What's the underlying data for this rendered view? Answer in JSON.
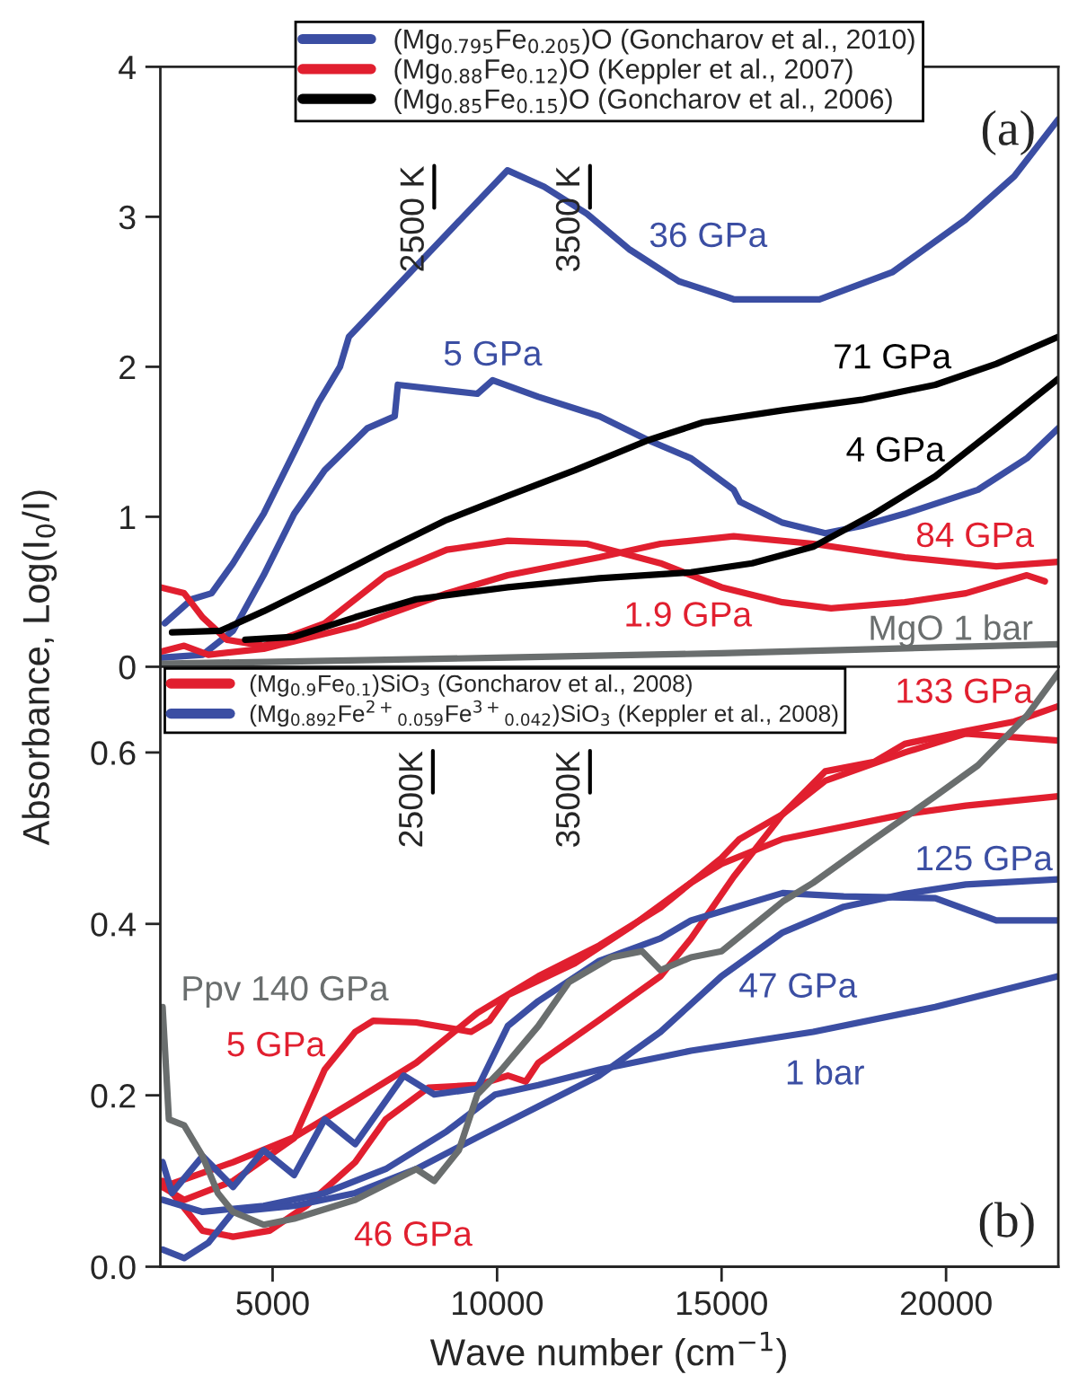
{
  "chart_data": [
    {
      "type": "line",
      "ylabel": "Absorbance, Log(I$_{0}$/I)",
      "xlim": [
        2500,
        22500
      ],
      "ylim": [
        0,
        4
      ],
      "xticks": [
        5000,
        10000,
        15000,
        20000
      ],
      "yticks": [
        0,
        1,
        2,
        3,
        4
      ],
      "tick_labels": "y",
      "legend": "top",
      "series": [
        {
          "name": "(Mg$_{0.795}$Fe$_{0.205}$)O (Goncharov et al., 2010)",
          "color": "#3b4ea3",
          "x": [
            2600,
            3200,
            3640,
            4120,
            4800,
            5480,
            6020,
            6500,
            6700,
            10230,
            11050,
            12000,
            12960,
            14050,
            15270,
            17180,
            18800,
            20430,
            21520,
            22500
          ],
          "values": [
            0.29,
            0.45,
            0.49,
            0.69,
            1.02,
            1.43,
            1.76,
            2.0,
            2.2,
            3.31,
            3.2,
            3.02,
            2.78,
            2.57,
            2.45,
            2.45,
            2.63,
            2.98,
            3.27,
            3.65
          ]
        },
        {
          "color": "#3b4ea3",
          "x": [
            2500,
            3440,
            4120,
            4800,
            5480,
            6160,
            7110,
            7720,
            7790,
            9560,
            9900,
            10920,
            12280,
            13370,
            14320,
            15270,
            15410,
            16360,
            17310,
            18130,
            19080,
            20710,
            21800,
            22500
          ],
          "values": [
            0.06,
            0.08,
            0.24,
            0.61,
            1.02,
            1.31,
            1.59,
            1.67,
            1.88,
            1.82,
            1.91,
            1.8,
            1.67,
            1.51,
            1.39,
            1.18,
            1.1,
            0.96,
            0.89,
            0.94,
            1.02,
            1.18,
            1.39,
            1.59
          ]
        },
        {
          "name": "(Mg$_{0.88}$Fe$_{0.12}$)O (Keppler et al., 2007)",
          "color": "#e11f2f",
          "x": [
            2500,
            3030,
            3440,
            3980,
            4800,
            6160,
            7520,
            8880,
            10240,
            12000,
            13640,
            15000,
            16360,
            17440,
            19080,
            20440,
            21800,
            22200
          ],
          "values": [
            0.53,
            0.49,
            0.33,
            0.18,
            0.14,
            0.29,
            0.61,
            0.78,
            0.84,
            0.82,
            0.69,
            0.53,
            0.43,
            0.39,
            0.43,
            0.49,
            0.61,
            0.57
          ]
        },
        {
          "color": "#e11f2f",
          "x": [
            2500,
            3030,
            3570,
            4800,
            6840,
            8880,
            10240,
            12280,
            13640,
            15270,
            17040,
            19080,
            21120,
            22500
          ],
          "values": [
            0.1,
            0.14,
            0.08,
            0.12,
            0.27,
            0.49,
            0.61,
            0.73,
            0.82,
            0.87,
            0.82,
            0.73,
            0.67,
            0.7
          ]
        },
        {
          "name": "(Mg$_{0.85}$Fe$_{0.15}$)O (Goncharov et al., 2006)",
          "color": "#000000",
          "x": [
            2760,
            3840,
            4800,
            6160,
            7520,
            8880,
            10240,
            11730,
            13360,
            14590,
            16360,
            18120,
            19760,
            21120,
            22500
          ],
          "values": [
            0.23,
            0.24,
            0.37,
            0.57,
            0.78,
            0.98,
            1.14,
            1.31,
            1.51,
            1.63,
            1.71,
            1.78,
            1.88,
            2.02,
            2.2
          ]
        },
        {
          "color": "#000000",
          "x": [
            4390,
            5480,
            6840,
            8200,
            10240,
            12280,
            14320,
            15680,
            17040,
            18400,
            19760,
            21120,
            22500
          ],
          "values": [
            0.18,
            0.2,
            0.33,
            0.45,
            0.53,
            0.59,
            0.63,
            0.69,
            0.8,
            1.02,
            1.27,
            1.59,
            1.92
          ]
        },
        {
          "color": "#6a6e6e",
          "x": [
            2500,
            10000,
            15000,
            22500
          ],
          "values": [
            0.02,
            0.06,
            0.09,
            0.15
          ]
        }
      ],
      "annotations": [
        "2500 K",
        "3500 K",
        "36 GPa",
        "5 GPa",
        "71 GPa",
        "4 GPa",
        "84 GPa",
        "1.9 GPa",
        "MgO 1 bar",
        "(a)"
      ]
    },
    {
      "type": "line",
      "xlabel": "Wave number (cm$^{−1}$)",
      "xlim": [
        2500,
        22500
      ],
      "ylim": [
        0,
        0.7
      ],
      "xticks": [
        5000,
        10000,
        15000,
        20000
      ],
      "yticks": [
        {
          "value": 0,
          "label": "0.0"
        },
        0.2,
        0.4,
        0.6
      ],
      "legend": "top left",
      "series": [
        {
          "name": "(Mg$_{0.9}$Fe$_{0.1}$)SiO$_{3}$ (Goncharov et al., 2008)",
          "color": "#e11f2f",
          "x": [
            2550,
            3030,
            4120,
            5480,
            6160,
            6840,
            7240,
            8200,
            9420,
            9830,
            10240,
            11730,
            12960,
            14320,
            15000,
            16360,
            19080,
            20440,
            22500
          ],
          "values": [
            0.093,
            0.078,
            0.1,
            0.15,
            0.23,
            0.274,
            0.287,
            0.285,
            0.274,
            0.287,
            0.317,
            0.354,
            0.396,
            0.448,
            0.47,
            0.499,
            0.528,
            0.538,
            0.549
          ]
        },
        {
          "color": "#e11f2f",
          "x": [
            2550,
            3440,
            4120,
            4930,
            5750,
            6840,
            7520,
            8470,
            9560,
            10240,
            10640,
            10920,
            12280,
            13640,
            14320,
            15270,
            16360,
            17310,
            18400,
            19080,
            20440,
            21520,
            22500
          ],
          "values": [
            0.1,
            0.042,
            0.035,
            0.042,
            0.071,
            0.122,
            0.172,
            0.209,
            0.212,
            0.223,
            0.216,
            0.238,
            0.288,
            0.339,
            0.383,
            0.455,
            0.528,
            0.578,
            0.589,
            0.61,
            0.625,
            0.636,
            0.654
          ]
        },
        {
          "color": "#e11f2f",
          "x": [
            2550,
            4120,
            5480,
            6840,
            8200,
            9560,
            10920,
            12280,
            13640,
            15000,
            15400,
            16360,
            17310,
            19080,
            20440,
            22500
          ],
          "values": [
            0.093,
            0.122,
            0.151,
            0.194,
            0.238,
            0.296,
            0.339,
            0.375,
            0.419,
            0.477,
            0.499,
            0.528,
            0.567,
            0.6,
            0.622,
            0.614
          ]
        },
        {
          "name": "(Mg$_{0.892}$Fe$^{2+}$$_{0.059}$Fe$^{3+}$$_{0.042}$)SiO$_{3}$ (Keppler et al., 2008)",
          "color": "#3b4ea3",
          "x": [
            2550,
            3440,
            4800,
            6160,
            7520,
            8880,
            9960,
            10920,
            12280,
            14320,
            17040,
            19760,
            22500
          ],
          "values": [
            0.078,
            0.064,
            0.071,
            0.086,
            0.114,
            0.158,
            0.201,
            0.212,
            0.23,
            0.252,
            0.274,
            0.303,
            0.339
          ]
        },
        {
          "color": "#3b4ea3",
          "x": [
            2550,
            3030,
            3570,
            4120,
            5480,
            6840,
            8200,
            9560,
            10920,
            12280,
            13640,
            15000,
            16360,
            17720,
            19080,
            20440,
            22500
          ],
          "values": [
            0.02,
            0.01,
            0.028,
            0.064,
            0.071,
            0.086,
            0.114,
            0.151,
            0.187,
            0.223,
            0.274,
            0.339,
            0.39,
            0.42,
            0.435,
            0.446,
            0.452
          ]
        },
        {
          "color": "#3b4ea3",
          "x": [
            2550,
            2760,
            3440,
            4120,
            4800,
            5480,
            6160,
            6840,
            7920,
            8600,
            9560,
            10240,
            10920,
            12280,
            13640,
            14320,
            16360,
            17720,
            19760,
            21120,
            22500
          ],
          "values": [
            0.122,
            0.086,
            0.129,
            0.093,
            0.136,
            0.107,
            0.172,
            0.143,
            0.223,
            0.201,
            0.208,
            0.281,
            0.31,
            0.357,
            0.383,
            0.404,
            0.436,
            0.432,
            0.43,
            0.404,
            0.404
          ]
        },
        {
          "color": "#6a6e6e",
          "x": [
            2550,
            2690,
            3030,
            3440,
            3780,
            4120,
            4800,
            5480,
            6840,
            8200,
            8600,
            9150,
            9560,
            10100,
            10920,
            11600,
            12550,
            13230,
            13640,
            14320,
            15000,
            15680,
            16360,
            17040,
            18400,
            19760,
            20710,
            21800,
            22500
          ],
          "values": [
            0.303,
            0.172,
            0.165,
            0.129,
            0.086,
            0.064,
            0.049,
            0.056,
            0.078,
            0.114,
            0.1,
            0.136,
            0.201,
            0.23,
            0.281,
            0.332,
            0.361,
            0.368,
            0.346,
            0.361,
            0.368,
            0.397,
            0.426,
            0.448,
            0.499,
            0.549,
            0.585,
            0.643,
            0.693
          ]
        }
      ],
      "annotations": [
        "2500K",
        "3500K",
        "133 GPa",
        "125 GPa",
        "47 GPa",
        "1 bar",
        "Ppv 140 GPa",
        "5 GPa",
        "46 GPa",
        "(b)"
      ]
    }
  ]
}
